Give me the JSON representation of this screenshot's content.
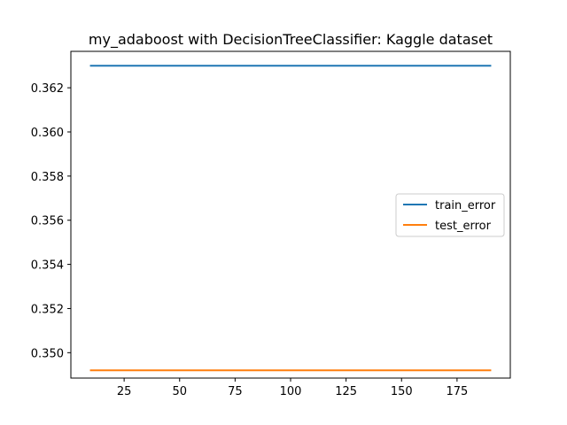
{
  "chart_data": {
    "type": "line",
    "title": "my_adaboost with DecisionTreeClassifier: Kaggle dataset",
    "xlabel": "",
    "ylabel": "",
    "xlim": [
      1,
      199
    ],
    "ylim": [
      0.34885,
      0.36365
    ],
    "xticks": [
      25,
      50,
      75,
      100,
      125,
      150,
      175
    ],
    "xtick_labels": [
      "25",
      "50",
      "75",
      "100",
      "125",
      "150",
      "175"
    ],
    "yticks": [
      0.35,
      0.352,
      0.354,
      0.356,
      0.358,
      0.36,
      0.362
    ],
    "ytick_labels": [
      "0.350",
      "0.352",
      "0.354",
      "0.356",
      "0.358",
      "0.360",
      "0.362"
    ],
    "grid": false,
    "legend": {
      "placement": "center-right"
    },
    "series": [
      {
        "name": "train_error",
        "color": "#1f77b4",
        "x": [
          10,
          190
        ],
        "y": [
          0.363,
          0.363
        ]
      },
      {
        "name": "test_error",
        "color": "#ff7f0e",
        "x": [
          10,
          190
        ],
        "y": [
          0.3492,
          0.3492
        ]
      }
    ]
  }
}
